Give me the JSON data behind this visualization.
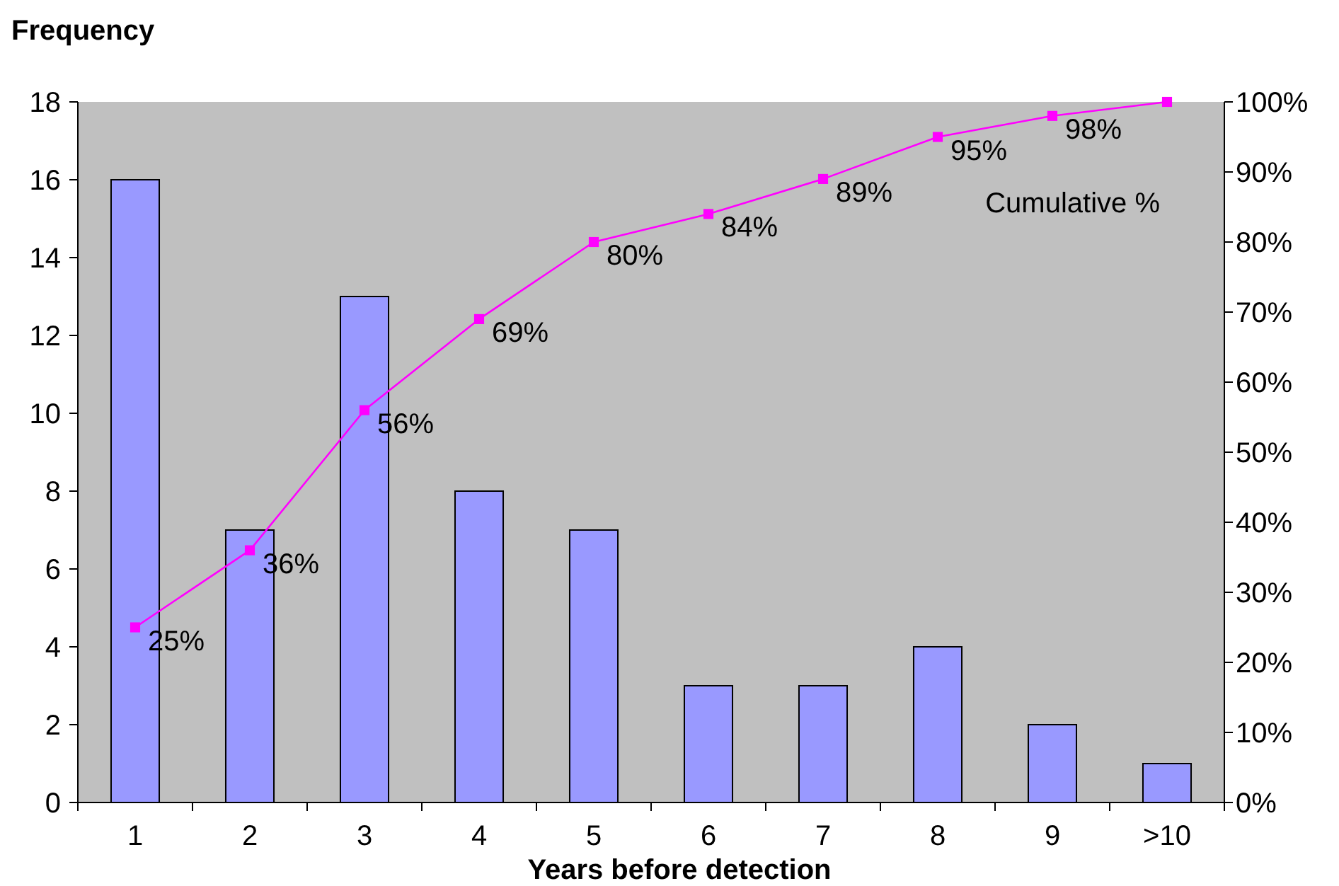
{
  "chart_data": {
    "type": "bar",
    "ylabel": "Frequency",
    "xlabel": "Years before detection",
    "categories": [
      "1",
      "2",
      "3",
      "4",
      "5",
      "6",
      "7",
      "8",
      "9",
      ">10"
    ],
    "series": [
      {
        "color": "#9999ff",
        "values": [
          16,
          7,
          13,
          8,
          7,
          3,
          3,
          4,
          2,
          1
        ]
      },
      {
        "type": "line",
        "axis": "y2",
        "name": "Cumulative %",
        "color": "#ff00ff",
        "marker": "square",
        "values": [
          25,
          36,
          56,
          69,
          80,
          84,
          89,
          95,
          98,
          100
        ],
        "value_labels": [
          "25%",
          "36%",
          "56%",
          "69%",
          "80%",
          "84%",
          "89%",
          "95%",
          "98%",
          null
        ]
      }
    ],
    "ylim": [
      0,
      18
    ],
    "yticks": [
      0,
      2,
      4,
      6,
      8,
      10,
      12,
      14,
      16,
      18
    ],
    "y2lim": [
      0,
      100
    ],
    "y2ticks": [
      {
        "value": 0,
        "label": "0%"
      },
      {
        "value": 10,
        "label": "10%"
      },
      {
        "value": 20,
        "label": "20%"
      },
      {
        "value": 30,
        "label": "30%"
      },
      {
        "value": 40,
        "label": "40%"
      },
      {
        "value": 50,
        "label": "50%"
      },
      {
        "value": 60,
        "label": "60%"
      },
      {
        "value": 70,
        "label": "70%"
      },
      {
        "value": 80,
        "label": "80%"
      },
      {
        "value": 90,
        "label": "90%"
      },
      {
        "value": 100,
        "label": "100%"
      }
    ],
    "grid": false
  }
}
